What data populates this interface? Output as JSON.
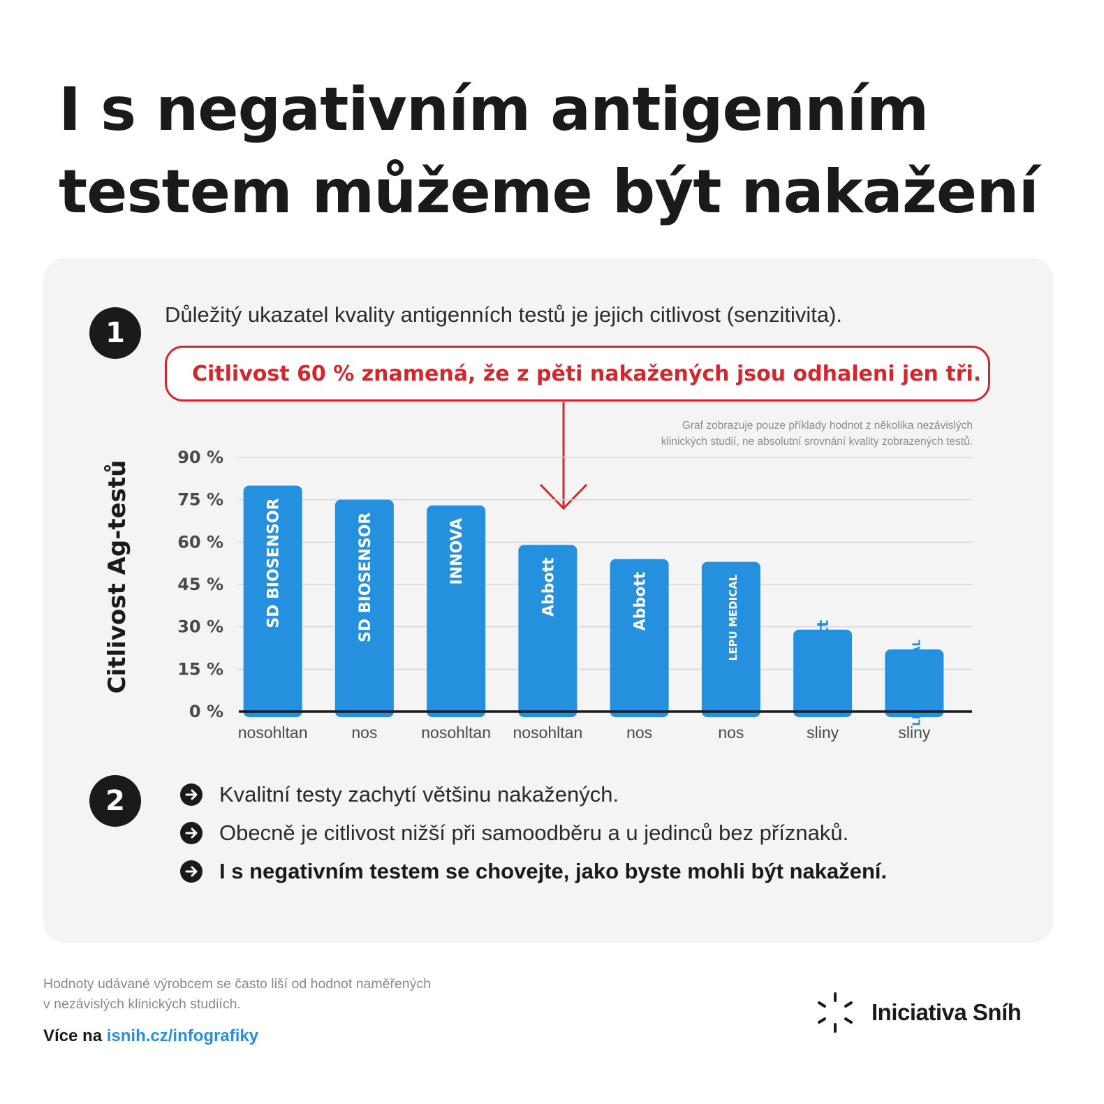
{
  "title": {
    "line1": "I s negativním antigenním",
    "line2": "testem můžeme být nakažení"
  },
  "section1": {
    "number": "1",
    "lead": "Důležitý ukazatel kvality antigenních testů je jejich citlivost (senzitivita).",
    "callout": "Citlivost 60 % znamená, že z pěti nakažených jsou odhaleni jen tři."
  },
  "note": {
    "line1": "Graf zobrazuje pouze příklady hodnot z několika nezávislých",
    "line2": "klinických studií, ne absolutní srovnání kvality zobrazených testů."
  },
  "chart_data": {
    "type": "bar",
    "ylabel": "Citlivost Ag-testů",
    "ylim": [
      0,
      90
    ],
    "yticks": [
      "90 %",
      "75 %",
      "60 %",
      "45 %",
      "30 %",
      "15 %",
      "0 %"
    ],
    "ytick_values": [
      90,
      75,
      60,
      45,
      30,
      15,
      0
    ],
    "grid": true,
    "categories": [
      "nosohltan",
      "nos",
      "nosohltan",
      "nosohltan",
      "nos",
      "nos",
      "sliny",
      "sliny"
    ],
    "brands": [
      "SD BIOSENSOR",
      "SD BIOSENSOR",
      "INNOVA",
      "Abbott",
      "Abbott",
      "LEPU MEDICAL",
      "Abbott",
      "LEPU MEDICAL"
    ],
    "values": [
      80,
      75,
      73,
      59,
      54,
      53,
      29,
      22
    ],
    "bar_color": "#2590de"
  },
  "section2": {
    "number": "2",
    "bullets": [
      "Kvalitní testy zachytí většinu nakažených.",
      "Obecně je citlivost nižší při samoodběru a u jedinců bez příznaků.",
      "I s negativním testem se chovejte, jako byste mohli být nakažení."
    ]
  },
  "footer": {
    "note_line1": "Hodnoty udávané výrobcem se často liší od hodnot naměřených",
    "note_line2": "v nezávislých klinických studiích.",
    "more_prefix": "Více na ",
    "more_link": "isnih.cz/infografiky",
    "logo_text": "Iniciativa Sníh"
  },
  "colors": {
    "accent_red": "#d7262b",
    "bar_blue": "#2590de",
    "panel_bg": "#f4f4f4",
    "text_dark": "#1a1a1a"
  }
}
